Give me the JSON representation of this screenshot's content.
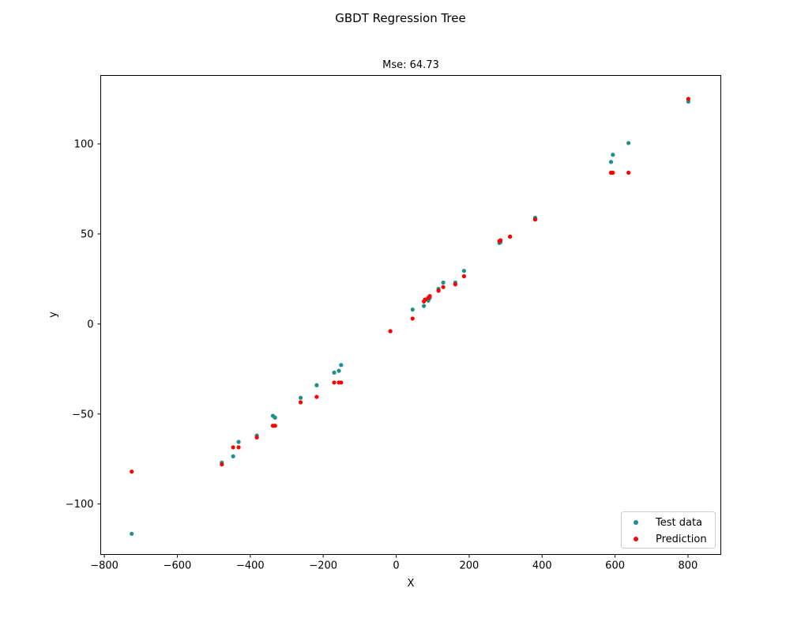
{
  "figure": {
    "suptitle": "GBDT Regression Tree"
  },
  "chart_data": {
    "type": "scatter",
    "title": "Mse: 64.73",
    "xlabel": "X",
    "ylabel": "y",
    "xlim": [
      -810,
      890
    ],
    "ylim": [
      -128,
      138
    ],
    "xticks": [
      -800,
      -600,
      -400,
      -200,
      0,
      200,
      400,
      600,
      800
    ],
    "xtick_labels": [
      "−800",
      "−600",
      "−400",
      "−200",
      "0",
      "200",
      "400",
      "600",
      "800"
    ],
    "yticks": [
      -100,
      -50,
      0,
      50,
      100
    ],
    "ytick_labels": [
      "−100",
      "−50",
      "0",
      "50",
      "100"
    ],
    "grid": false,
    "legend_position": "lower right",
    "series": [
      {
        "name": "Test data",
        "color": "#1f8f89",
        "points": [
          [
            -725,
            -116.5
          ],
          [
            -478,
            -77
          ],
          [
            -447,
            -73.5
          ],
          [
            -432,
            -65.5
          ],
          [
            -382,
            -62
          ],
          [
            -338,
            -51
          ],
          [
            -332,
            -52
          ],
          [
            -262,
            -41
          ],
          [
            -218,
            -34
          ],
          [
            -170,
            -27
          ],
          [
            -157,
            -26
          ],
          [
            -151,
            -22.8
          ],
          [
            -16,
            -4
          ],
          [
            45,
            8
          ],
          [
            76,
            10
          ],
          [
            79,
            13.5
          ],
          [
            88,
            13
          ],
          [
            92,
            14.5
          ],
          [
            116,
            19.5
          ],
          [
            129,
            23
          ],
          [
            162,
            23
          ],
          [
            186,
            29.5
          ],
          [
            283,
            45
          ],
          [
            286,
            45.5
          ],
          [
            312,
            48.5
          ],
          [
            381,
            59
          ],
          [
            589,
            90
          ],
          [
            594,
            94
          ],
          [
            637,
            100.5
          ],
          [
            801,
            123.5
          ]
        ]
      },
      {
        "name": "Prediction",
        "color": "#ff0000",
        "points": [
          [
            -725,
            -82
          ],
          [
            -478,
            -78
          ],
          [
            -447,
            -68.5
          ],
          [
            -432,
            -68.5
          ],
          [
            -382,
            -63
          ],
          [
            -338,
            -56.5
          ],
          [
            -332,
            -56.5
          ],
          [
            -262,
            -43.5
          ],
          [
            -218,
            -40.5
          ],
          [
            -170,
            -32.5
          ],
          [
            -157,
            -32.5
          ],
          [
            -151,
            -32.5
          ],
          [
            -16,
            -4
          ],
          [
            45,
            3
          ],
          [
            76,
            12.5
          ],
          [
            79,
            13.5
          ],
          [
            88,
            14.5
          ],
          [
            92,
            15.5
          ],
          [
            116,
            18.5
          ],
          [
            129,
            20.5
          ],
          [
            162,
            22
          ],
          [
            186,
            26.5
          ],
          [
            283,
            46
          ],
          [
            286,
            46.5
          ],
          [
            312,
            48.5
          ],
          [
            381,
            58
          ],
          [
            589,
            84
          ],
          [
            594,
            84
          ],
          [
            637,
            84
          ],
          [
            801,
            125
          ]
        ]
      }
    ]
  }
}
